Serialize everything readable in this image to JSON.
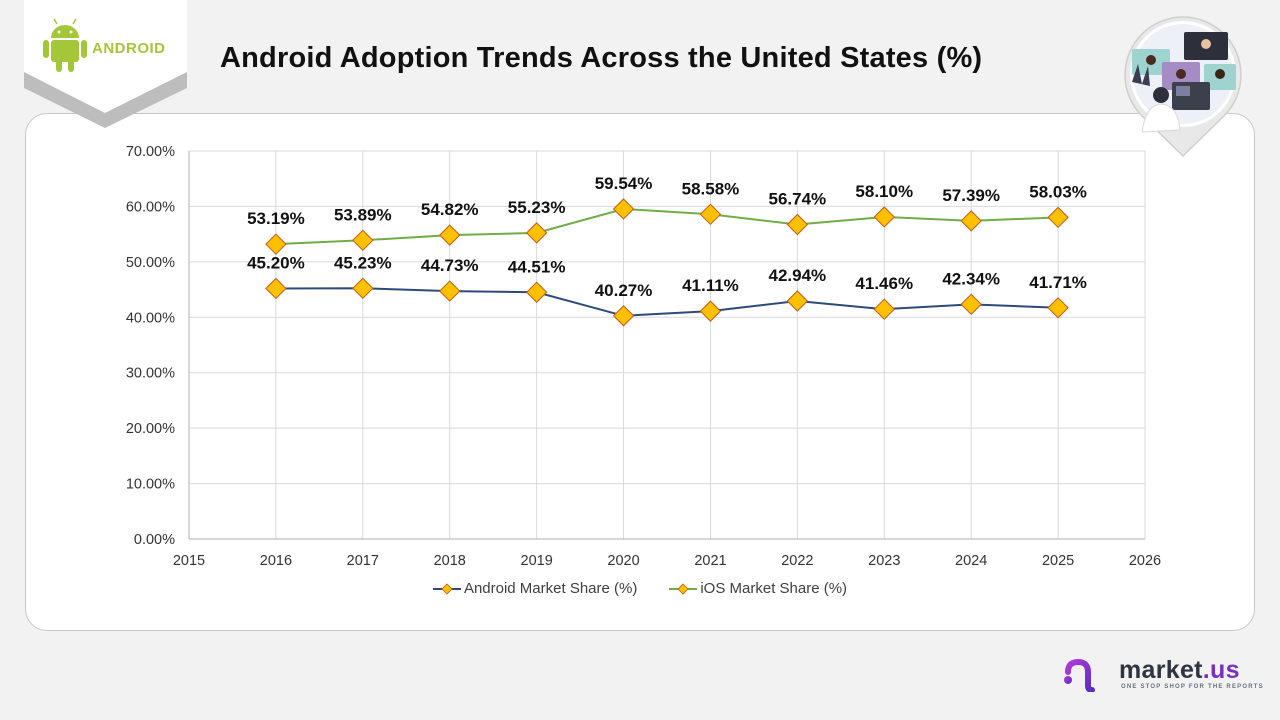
{
  "header": {
    "title": "Android Adoption Trends Across the United States (%)",
    "logo_text": "android",
    "logo_color": "#a4c639"
  },
  "brand": {
    "name": "market",
    "tld": ".us",
    "tagline": "ONE STOP SHOP FOR THE REPORTS"
  },
  "chart_data": {
    "type": "line",
    "title": "Android Adoption Trends Across the United States (%)",
    "xlabel": "",
    "ylabel": "",
    "x": [
      2016,
      2017,
      2018,
      2019,
      2020,
      2021,
      2022,
      2023,
      2024,
      2025
    ],
    "xlim": [
      2015,
      2026
    ],
    "x_ticks": [
      "2015",
      "2016",
      "2017",
      "2018",
      "2019",
      "2020",
      "2021",
      "2022",
      "2023",
      "2024",
      "2025",
      "2026"
    ],
    "ylim": [
      0,
      70
    ],
    "y_ticks": [
      "0.00%",
      "10.00%",
      "20.00%",
      "30.00%",
      "40.00%",
      "50.00%",
      "60.00%",
      "70.00%"
    ],
    "grid": true,
    "legend_position": "bottom",
    "series": [
      {
        "name": "Android Market Share (%)",
        "color": "#2e4a7d",
        "marker": "diamond",
        "marker_color": "#ffc000",
        "values": [
          45.2,
          45.23,
          44.73,
          44.51,
          40.27,
          41.11,
          42.94,
          41.46,
          42.34,
          41.71
        ],
        "labels": [
          "45.20%",
          "45.23%",
          "44.73%",
          "44.51%",
          "40.27%",
          "41.11%",
          "42.94%",
          "41.46%",
          "42.34%",
          "41.71%"
        ]
      },
      {
        "name": "iOS Market Share (%)",
        "color": "#70ad47",
        "marker": "diamond",
        "marker_color": "#ffc000",
        "values": [
          53.19,
          53.89,
          54.82,
          55.23,
          59.54,
          58.58,
          56.74,
          58.1,
          57.39,
          58.03
        ],
        "labels": [
          "53.19%",
          "53.89%",
          "54.82%",
          "55.23%",
          "59.54%",
          "58.58%",
          "56.74%",
          "58.10%",
          "57.39%",
          "58.03%"
        ]
      }
    ]
  }
}
